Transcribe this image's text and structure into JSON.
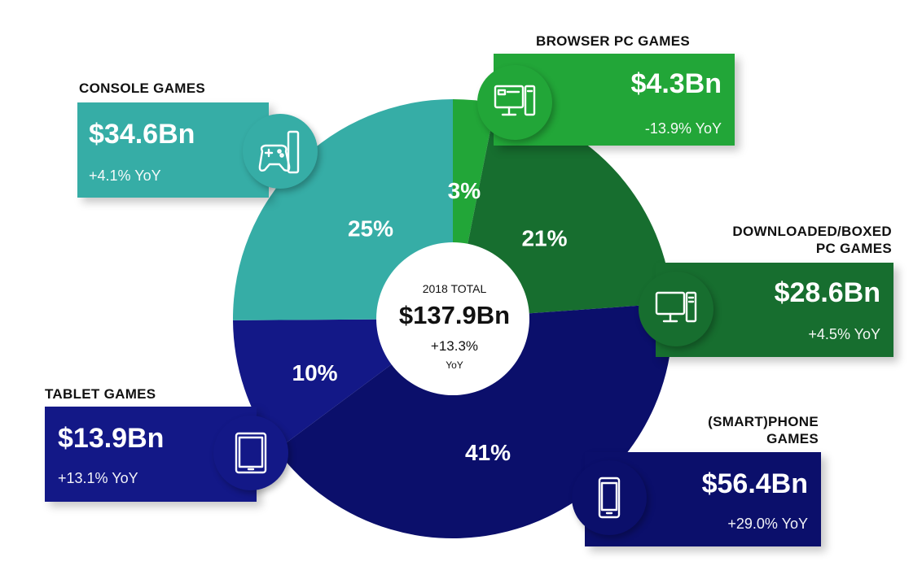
{
  "chart_data": {
    "type": "pie",
    "total": {
      "label": "2018 TOTAL",
      "value": "$137.9Bn",
      "growth": "+13.3%",
      "growth_unit": "YoY"
    },
    "segments": [
      {
        "key": "browser",
        "title": [
          "BROWSER PC GAMES"
        ],
        "amount": "$4.3Bn",
        "value": 4.3,
        "percent": 3,
        "percent_label": "3%",
        "yoy": "-13.9% YoY",
        "color": "#22a638",
        "icon": "desktop-pc-icon"
      },
      {
        "key": "downloaded",
        "title": [
          "DOWNLOADED/BOXED",
          "PC GAMES"
        ],
        "amount": "$28.6Bn",
        "value": 28.6,
        "percent": 21,
        "percent_label": "21%",
        "yoy": "+4.5% YoY",
        "color": "#176e2f",
        "icon": "desktop-pc-icon"
      },
      {
        "key": "phone",
        "title": [
          "(SMART)PHONE",
          "GAMES"
        ],
        "amount": "$56.4Bn",
        "value": 56.4,
        "percent": 41,
        "percent_label": "41%",
        "yoy": "+29.0% YoY",
        "color": "#0b0f6b",
        "icon": "smartphone-icon"
      },
      {
        "key": "tablet",
        "title": [
          "TABLET GAMES"
        ],
        "amount": "$13.9Bn",
        "value": 13.9,
        "percent": 10,
        "percent_label": "10%",
        "yoy": "+13.1% YoY",
        "color": "#131887",
        "icon": "tablet-icon"
      },
      {
        "key": "console",
        "title": [
          "CONSOLE GAMES"
        ],
        "amount": "$34.6Bn",
        "value": 34.6,
        "percent": 25,
        "percent_label": "25%",
        "yoy": "+4.1% YoY",
        "color": "#36ada6",
        "icon": "console-gamepad-icon"
      }
    ]
  }
}
